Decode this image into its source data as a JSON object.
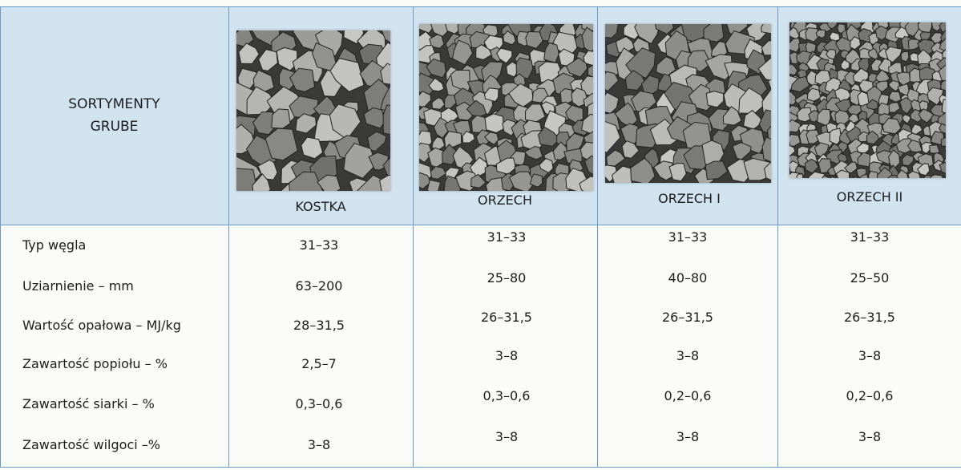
{
  "table": {
    "header": {
      "corner": "SORTYMENTY GRUBE",
      "columns": [
        "KOSTKA",
        "ORZECH",
        "ORZECH I",
        "ORZECH II"
      ]
    },
    "rows": [
      {
        "label": "Typ węgla",
        "values": [
          "31–33",
          "31–33",
          "31–33",
          "31–33"
        ]
      },
      {
        "label": "Uziarnienie – mm",
        "values": [
          "63–200",
          "25–80",
          "40–80",
          "25–50"
        ]
      },
      {
        "label": "Wartość opałowa – MJ/kg",
        "values": [
          "28–31,5",
          "26–31,5",
          "26–31,5",
          "26–31,5"
        ]
      },
      {
        "label": "Zawartość popiołu – %",
        "values": [
          "2,5–7",
          "3–8",
          "3–8",
          "3–8"
        ]
      },
      {
        "label": "Zawartość siarki – %",
        "values": [
          "0,3–0,6",
          "0,3–0,6",
          "0,2–0,6",
          "0,2–0,6"
        ]
      },
      {
        "label": "Zawartość wilgoci –%",
        "values": [
          "3–8",
          "3–8",
          "3–8",
          "3–8"
        ]
      }
    ]
  }
}
